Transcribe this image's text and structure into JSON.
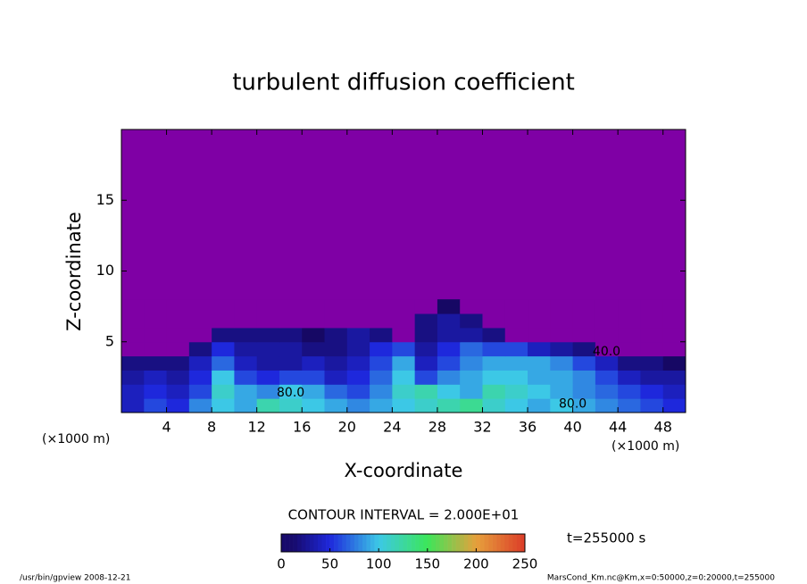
{
  "chart_data": {
    "type": "heatmap",
    "title": "turbulent diffusion coefficient",
    "xlabel": "X-coordinate",
    "ylabel": "Z-coordinate",
    "x_unit": "(×1000 m)",
    "y_unit": "(×1000 m)",
    "xlim": [
      0,
      50
    ],
    "xticks": [
      4,
      8,
      12,
      16,
      20,
      24,
      28,
      32,
      36,
      40,
      44,
      48
    ],
    "ylim": [
      0,
      20
    ],
    "yticks": [
      5,
      10,
      15
    ],
    "x_bins": [
      0,
      2,
      4,
      6,
      8,
      10,
      12,
      14,
      16,
      18,
      20,
      22,
      24,
      26,
      28,
      30,
      32,
      34,
      36,
      38,
      40,
      42,
      44,
      46,
      48,
      50
    ],
    "z_bins": [
      0,
      1,
      2,
      3,
      4,
      5,
      6,
      7,
      8
    ],
    "values": [
      [
        40,
        60,
        50,
        80,
        100,
        90,
        120,
        110,
        100,
        90,
        80,
        90,
        100,
        110,
        120,
        130,
        110,
        100,
        90,
        100,
        90,
        80,
        70,
        60,
        50
      ],
      [
        40,
        50,
        40,
        60,
        110,
        90,
        80,
        100,
        90,
        70,
        60,
        80,
        110,
        120,
        100,
        90,
        120,
        110,
        100,
        90,
        80,
        70,
        60,
        50,
        40
      ],
      [
        30,
        40,
        30,
        50,
        100,
        60,
        50,
        60,
        60,
        40,
        50,
        70,
        100,
        60,
        80,
        90,
        100,
        100,
        90,
        90,
        80,
        60,
        40,
        30,
        30
      ],
      [
        20,
        20,
        20,
        40,
        70,
        40,
        30,
        30,
        40,
        30,
        40,
        60,
        90,
        40,
        60,
        80,
        90,
        90,
        90,
        80,
        60,
        40,
        20,
        20,
        10
      ],
      [
        0,
        0,
        0,
        20,
        50,
        30,
        30,
        30,
        20,
        20,
        30,
        50,
        60,
        30,
        50,
        70,
        60,
        60,
        40,
        30,
        20,
        0,
        0,
        0,
        0
      ],
      [
        0,
        0,
        0,
        0,
        20,
        20,
        20,
        20,
        10,
        20,
        30,
        20,
        0,
        20,
        30,
        30,
        20,
        0,
        0,
        0,
        0,
        0,
        0,
        0,
        0
      ],
      [
        0,
        0,
        0,
        0,
        0,
        0,
        0,
        0,
        0,
        0,
        0,
        0,
        0,
        20,
        30,
        20,
        0,
        0,
        0,
        0,
        0,
        0,
        0,
        0,
        0
      ],
      [
        0,
        0,
        0,
        0,
        0,
        0,
        0,
        0,
        0,
        0,
        0,
        0,
        0,
        0,
        10,
        0,
        0,
        0,
        0,
        0,
        0,
        0,
        0,
        0,
        0
      ]
    ],
    "annotations": [
      {
        "text": "40.0",
        "x": 43,
        "z": 4.3
      },
      {
        "text": "80.0",
        "x": 15,
        "z": 1.4
      },
      {
        "text": "80.0",
        "x": 40,
        "z": 0.6
      }
    ],
    "contour_interval": "CONTOUR INTERVAL = 2.000E+01",
    "time": "t=255000 s",
    "clim": [
      0,
      250
    ],
    "cticks": [
      0,
      50,
      100,
      150,
      200,
      250
    ],
    "footer_left": "/usr/bin/gpview  2008-12-21",
    "footer_right": "MarsCond_Km.nc@Km,x=0:50000,z=0:20000,t=255000"
  }
}
